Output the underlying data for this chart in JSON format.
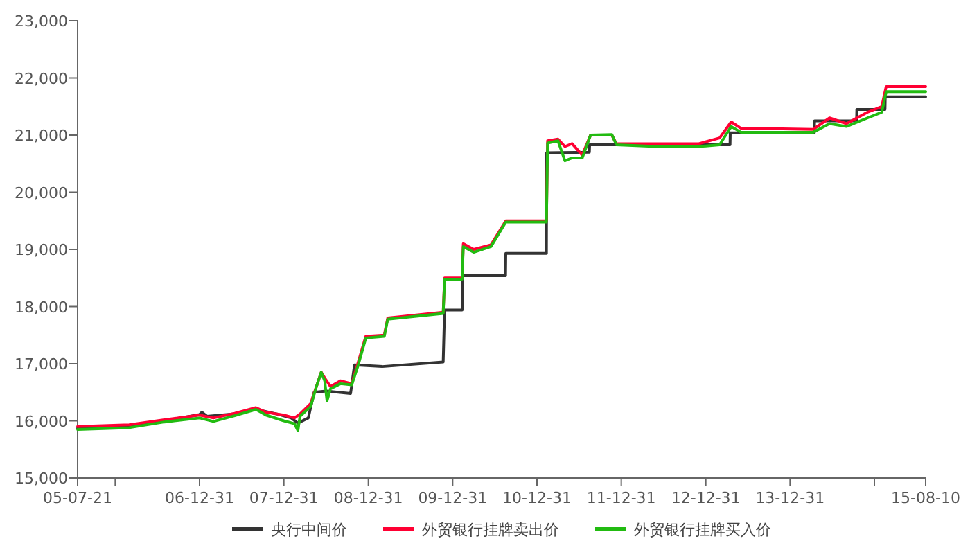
{
  "chart_data": {
    "type": "line",
    "xlim": [
      "2005-07-21",
      "2015-08-10"
    ],
    "xticks": [
      {
        "value": "2005-07-21",
        "label": "05-07-21"
      },
      {
        "value": "2005-12-31",
        "label": null
      },
      {
        "value": "2006-12-31",
        "label": "06-12-31"
      },
      {
        "value": "2007-12-31",
        "label": "07-12-31"
      },
      {
        "value": "2008-12-31",
        "label": "08-12-31"
      },
      {
        "value": "2009-12-31",
        "label": "09-12-31"
      },
      {
        "value": "2010-12-31",
        "label": "10-12-31"
      },
      {
        "value": "2011-12-31",
        "label": "11-12-31"
      },
      {
        "value": "2012-12-31",
        "label": "12-12-31"
      },
      {
        "value": "2013-12-31",
        "label": "13-12-31"
      },
      {
        "value": "2014-12-31",
        "label": null
      },
      {
        "value": "2015-08-10",
        "label": "15-08-10"
      }
    ],
    "ylim": [
      15000,
      23000
    ],
    "yticks": [
      {
        "value": 15000,
        "label": "15,000"
      },
      {
        "value": 16000,
        "label": "16,000"
      },
      {
        "value": 17000,
        "label": "17,000"
      },
      {
        "value": 18000,
        "label": "18,000"
      },
      {
        "value": 19000,
        "label": "19,000"
      },
      {
        "value": 20000,
        "label": "20,000"
      },
      {
        "value": 21000,
        "label": "21,000"
      },
      {
        "value": 22000,
        "label": "22,000"
      },
      {
        "value": 23000,
        "label": "23,000"
      }
    ],
    "grid": false,
    "legend": "bottom",
    "marker": "none",
    "line_style": "solid",
    "series": [
      {
        "name": "央行中间价",
        "color": "#333333",
        "x": [
          "2005-07-21",
          "2006-03-01",
          "2006-08-01",
          "2006-12-31",
          "2007-01-10",
          "2007-02-01",
          "2007-06-01",
          "2007-09-01",
          "2007-12-01",
          "2008-02-01",
          "2008-03-01",
          "2008-04-15",
          "2008-05-10",
          "2008-07-01",
          "2008-10-15",
          "2008-11-01",
          "2009-03-01",
          "2009-11-20",
          "2009-11-26",
          "2010-02-10",
          "2010-02-11",
          "2010-08-17",
          "2010-08-18",
          "2011-02-10",
          "2011-02-11",
          "2011-08-15",
          "2011-08-16",
          "2013-04-15",
          "2013-04-16",
          "2014-04-15",
          "2014-04-16",
          "2014-10-15",
          "2014-10-16",
          "2015-02-15",
          "2015-02-16",
          "2015-08-10"
        ],
        "values": [
          15870,
          15900,
          16000,
          16110,
          16150,
          16080,
          16120,
          16200,
          16120,
          16050,
          15960,
          16050,
          16500,
          16520,
          16480,
          16980,
          16950,
          17030,
          17940,
          17940,
          18540,
          18540,
          18930,
          18930,
          20690,
          20700,
          20830,
          20830,
          21040,
          21040,
          21250,
          21250,
          21450,
          21450,
          21670,
          21670
        ]
      },
      {
        "name": "外贸银行挂牌卖出价",
        "color": "#ff0033",
        "x": [
          "2005-07-21",
          "2006-03-01",
          "2006-08-01",
          "2006-12-31",
          "2007-03-01",
          "2007-06-01",
          "2007-09-01",
          "2007-10-15",
          "2007-12-31",
          "2008-02-15",
          "2008-03-10",
          "2008-04-25",
          "2008-05-20",
          "2008-06-10",
          "2008-06-25",
          "2008-07-20",
          "2008-09-01",
          "2008-10-20",
          "2008-11-15",
          "2008-12-20",
          "2009-03-10",
          "2009-03-25",
          "2009-11-20",
          "2009-11-26",
          "2010-02-10",
          "2010-02-15",
          "2010-04-01",
          "2010-06-15",
          "2010-08-18",
          "2011-02-10",
          "2011-02-15",
          "2011-04-01",
          "2011-05-01",
          "2011-06-01",
          "2011-07-15",
          "2011-08-20",
          "2011-11-20",
          "2011-12-10",
          "2012-06-01",
          "2012-12-01",
          "2013-03-01",
          "2013-04-20",
          "2013-06-01",
          "2014-04-10",
          "2014-06-20",
          "2014-09-01",
          "2014-12-01",
          "2015-02-01",
          "2015-02-20",
          "2015-08-10"
        ],
        "values": [
          15900,
          15930,
          16020,
          16100,
          16050,
          16130,
          16230,
          16150,
          16100,
          16050,
          16120,
          16300,
          16600,
          16850,
          16750,
          16600,
          16700,
          16650,
          17000,
          17480,
          17500,
          17800,
          17900,
          18500,
          18500,
          19100,
          19000,
          19080,
          19500,
          19500,
          20900,
          20930,
          20800,
          20850,
          20650,
          21000,
          21000,
          20850,
          20850,
          20850,
          20950,
          21230,
          21120,
          21100,
          21300,
          21200,
          21400,
          21500,
          21850,
          21850
        ]
      },
      {
        "name": "外贸银行挂牌买入价",
        "color": "#22bb11",
        "x": [
          "2005-07-21",
          "2006-03-01",
          "2006-08-01",
          "2006-12-31",
          "2007-03-01",
          "2007-06-01",
          "2007-09-01",
          "2007-10-15",
          "2007-12-31",
          "2008-02-15",
          "2008-03-01",
          "2008-03-10",
          "2008-04-25",
          "2008-05-20",
          "2008-06-10",
          "2008-06-25",
          "2008-07-05",
          "2008-07-20",
          "2008-09-01",
          "2008-10-20",
          "2008-11-15",
          "2008-12-20",
          "2009-03-10",
          "2009-03-25",
          "2009-11-20",
          "2009-11-26",
          "2010-02-10",
          "2010-02-15",
          "2010-04-01",
          "2010-06-15",
          "2010-08-18",
          "2011-02-10",
          "2011-02-15",
          "2011-04-01",
          "2011-05-01",
          "2011-06-01",
          "2011-07-15",
          "2011-08-20",
          "2011-11-20",
          "2011-12-10",
          "2012-06-01",
          "2012-12-01",
          "2013-03-01",
          "2013-04-20",
          "2013-06-01",
          "2014-04-10",
          "2014-06-20",
          "2014-09-01",
          "2014-12-01",
          "2015-02-01",
          "2015-02-20",
          "2015-08-10"
        ],
        "values": [
          15850,
          15880,
          15980,
          16050,
          15990,
          16090,
          16200,
          16100,
          16000,
          15950,
          15830,
          16080,
          16250,
          16600,
          16850,
          16700,
          16350,
          16560,
          16650,
          16630,
          16950,
          17450,
          17480,
          17780,
          17880,
          18480,
          18480,
          19050,
          18950,
          19050,
          19480,
          19480,
          20860,
          20900,
          20550,
          20600,
          20600,
          21000,
          21010,
          20830,
          20800,
          20800,
          20830,
          21150,
          21050,
          21050,
          21200,
          21150,
          21300,
          21400,
          21760,
          21760
        ]
      }
    ]
  }
}
